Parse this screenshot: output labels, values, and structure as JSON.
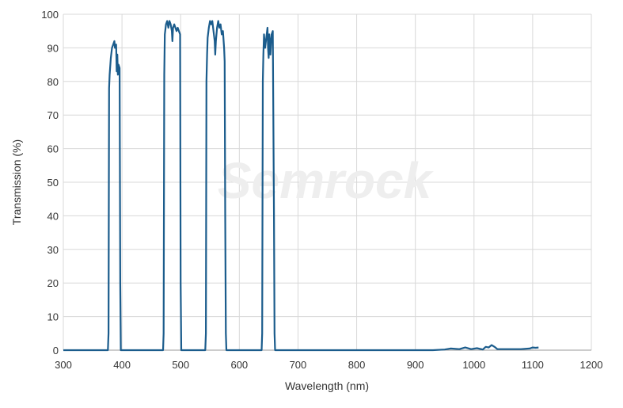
{
  "chart_data": {
    "type": "line",
    "title": "",
    "xlabel": "Wavelength (nm)",
    "ylabel": "Transmission (%)",
    "xlim": [
      300,
      1200
    ],
    "ylim": [
      0,
      100
    ],
    "xticks": [
      300,
      400,
      500,
      600,
      700,
      800,
      900,
      1000,
      1100,
      1200
    ],
    "yticks": [
      0,
      10,
      20,
      30,
      40,
      50,
      60,
      70,
      80,
      90,
      100
    ],
    "grid": true,
    "line_color": "#1b5c8c",
    "watermark": "Semrock",
    "series": [
      {
        "x": [
          300,
          376,
          377,
          378,
          379,
          381,
          383,
          385,
          387,
          388,
          390,
          391,
          392,
          393,
          394,
          396,
          397,
          398,
          470,
          471,
          472,
          473,
          475,
          477,
          479,
          481,
          483,
          485,
          486,
          487,
          489,
          491,
          493,
          495,
          497,
          499,
          500,
          501,
          542,
          543,
          544,
          545,
          546,
          548,
          550,
          552,
          554,
          556,
          558,
          559,
          560,
          562,
          564,
          566,
          568,
          570,
          572,
          574,
          575,
          576,
          577,
          578,
          638,
          639,
          640,
          641,
          642,
          644,
          646,
          648,
          649,
          650,
          651,
          652,
          653,
          655,
          657,
          659,
          660,
          661,
          930,
          950,
          960,
          975,
          985,
          995,
          1005,
          1015,
          1020,
          1025,
          1030,
          1035,
          1040,
          1050,
          1080,
          1095,
          1100,
          1105,
          1110
        ],
        "y": [
          0,
          0,
          5,
          78,
          82,
          87,
          90,
          91,
          92,
          90,
          91,
          83,
          88,
          82,
          85,
          84,
          20,
          0,
          0,
          5,
          82,
          94,
          97,
          98,
          96,
          98,
          97,
          95,
          92,
          96,
          97,
          96,
          95,
          96,
          95,
          94,
          20,
          0,
          0,
          5,
          80,
          88,
          93,
          96,
          98,
          97,
          98,
          95,
          92,
          88,
          92,
          96,
          98,
          96,
          97,
          94,
          95,
          90,
          86,
          40,
          5,
          0,
          0,
          5,
          80,
          88,
          94,
          90,
          93,
          96,
          90,
          87,
          94,
          92,
          88,
          94,
          95,
          40,
          5,
          0,
          0,
          0.2,
          0.5,
          0.3,
          0.8,
          0.3,
          0.6,
          0.2,
          1,
          0.8,
          1.5,
          1,
          0.3,
          0.3,
          0.3,
          0.5,
          0.8,
          0.7,
          0.8
        ]
      }
    ]
  }
}
